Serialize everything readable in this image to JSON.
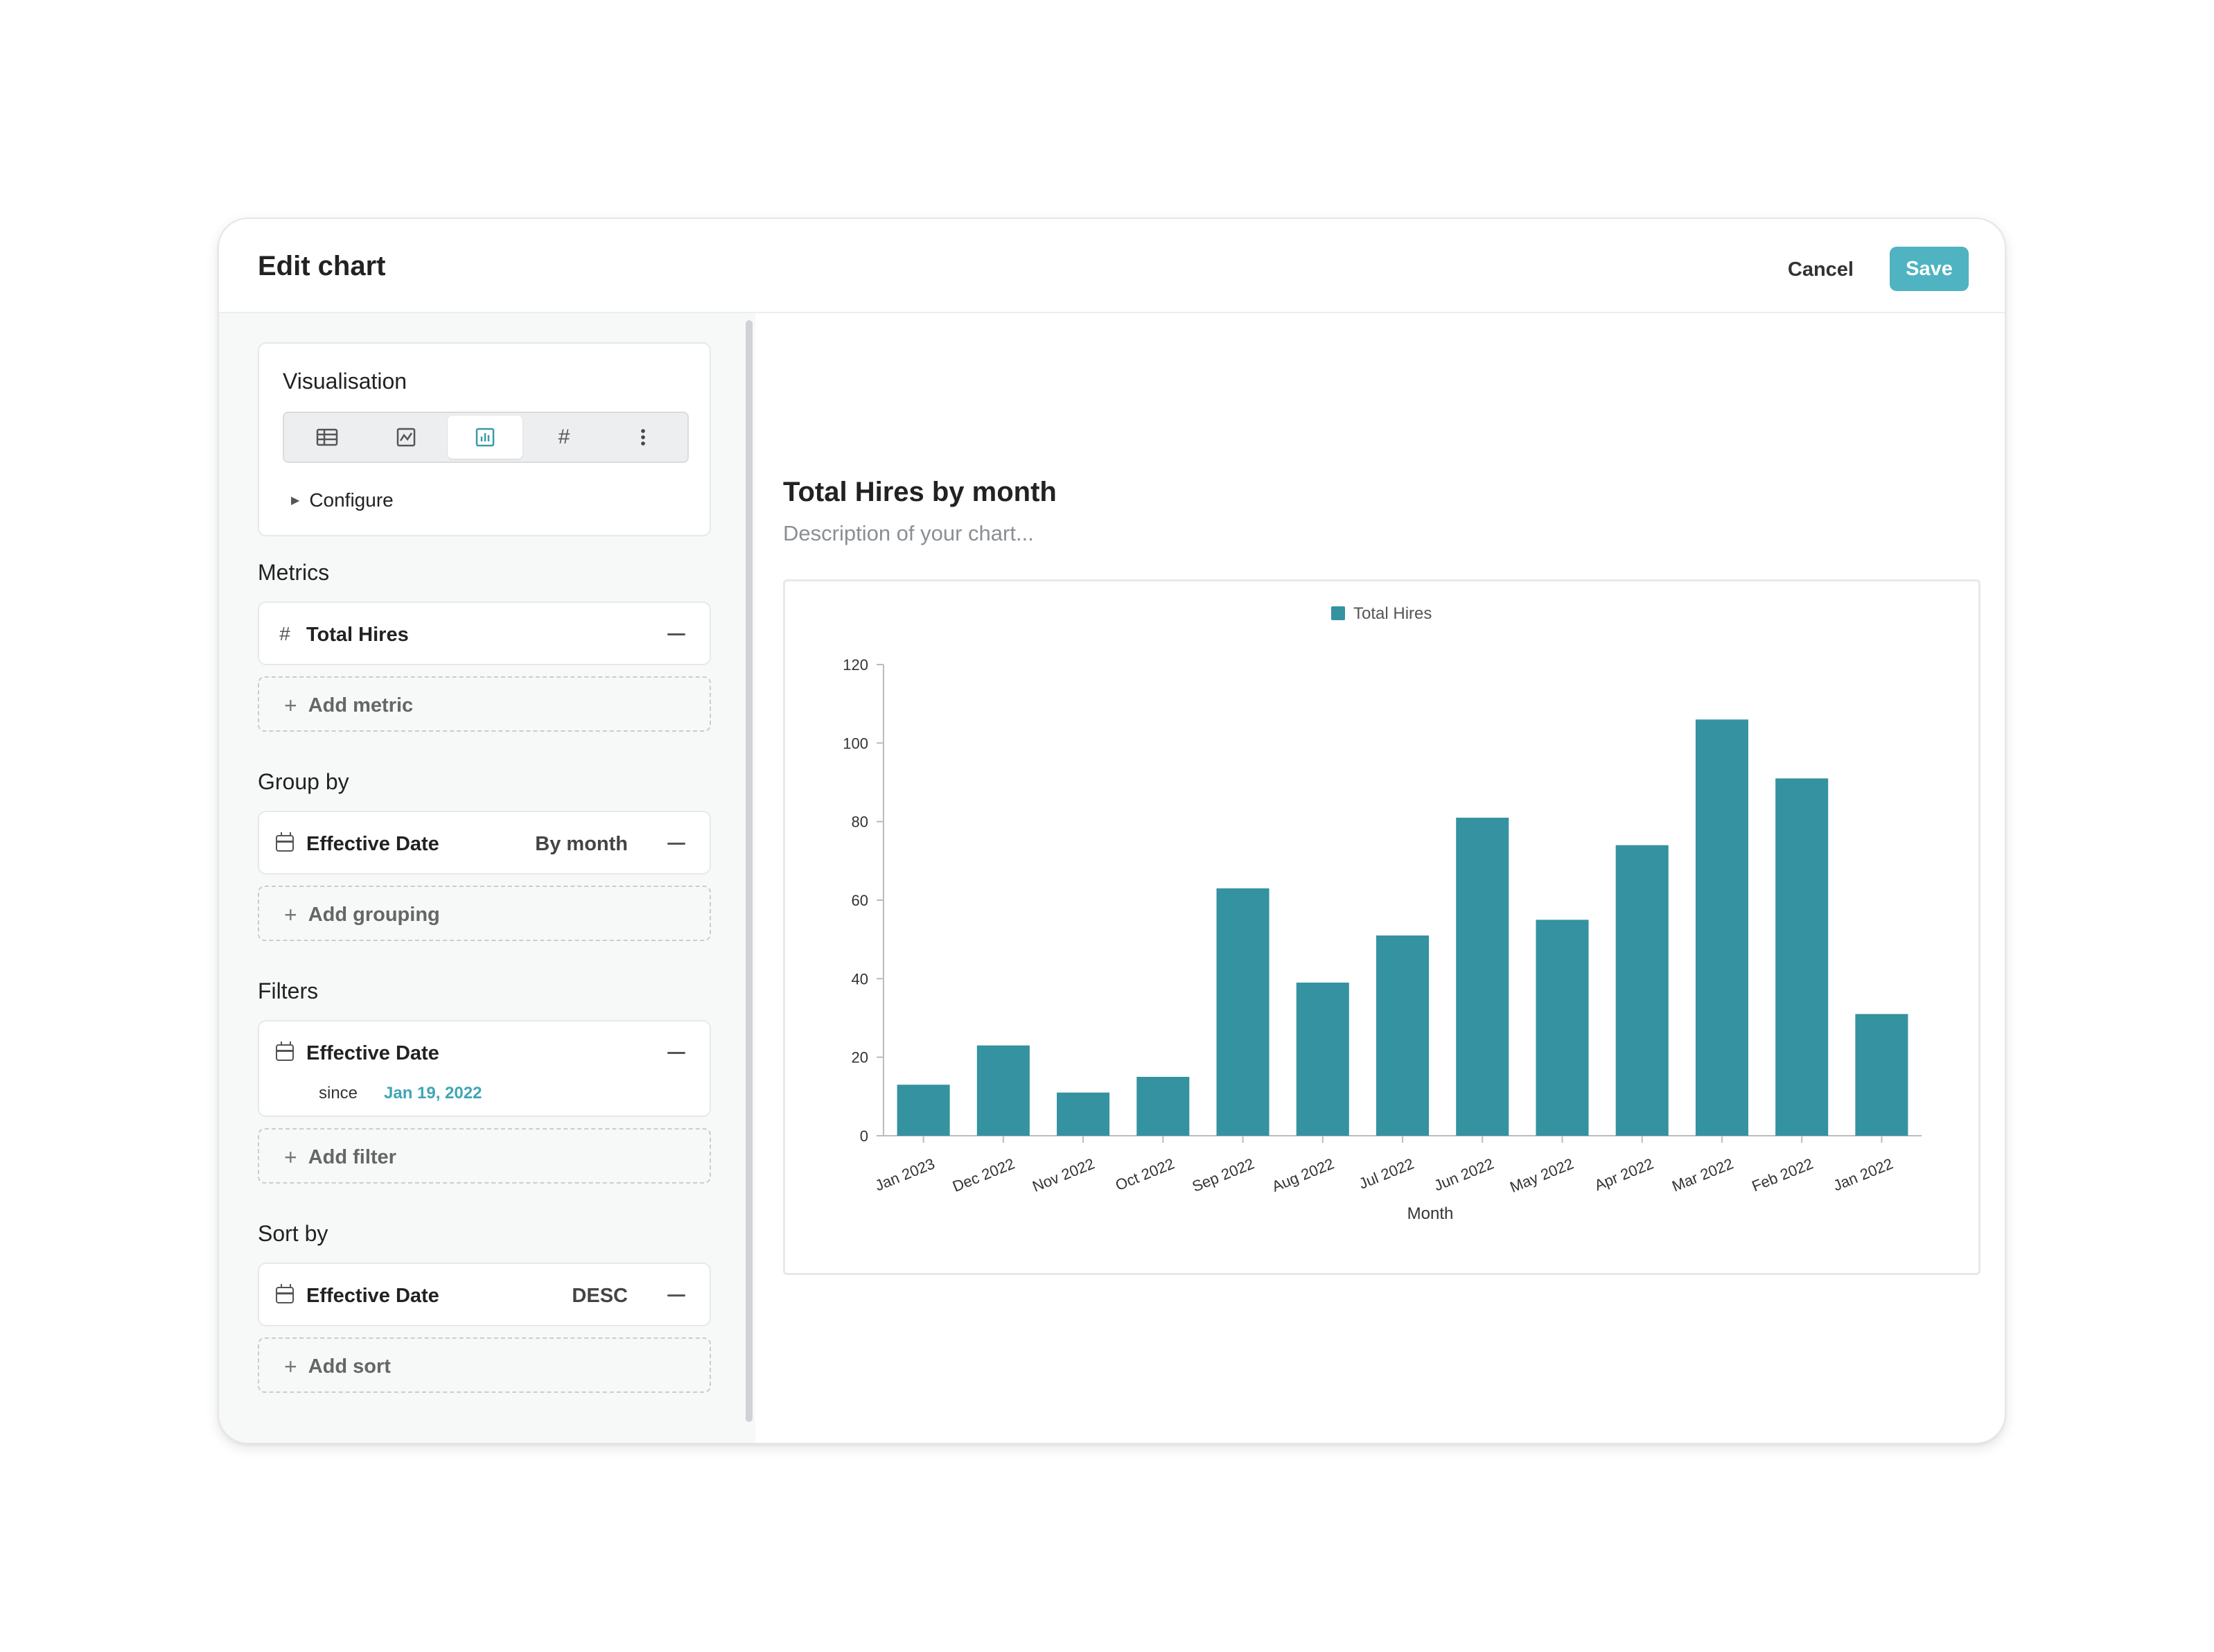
{
  "header": {
    "title": "Edit chart",
    "cancel_label": "Cancel",
    "save_label": "Save"
  },
  "visualisation": {
    "title": "Visualisation",
    "options": [
      {
        "icon": "table-icon"
      },
      {
        "icon": "line-chart-icon"
      },
      {
        "icon": "bar-chart-icon",
        "active": true
      },
      {
        "icon": "number-icon",
        "glyph": "#"
      },
      {
        "icon": "more-vertical-icon"
      }
    ],
    "configure_label": "Configure"
  },
  "metrics": {
    "title": "Metrics",
    "item": {
      "glyph": "#",
      "label": "Total Hires"
    },
    "add_label": "Add metric"
  },
  "group_by": {
    "title": "Group by",
    "item": {
      "label": "Effective Date",
      "meta": "By month"
    },
    "add_label": "Add grouping"
  },
  "filters": {
    "title": "Filters",
    "item": {
      "label": "Effective Date",
      "since_label": "since",
      "since_value": "Jan 19, 2022"
    },
    "add_label": "Add filter"
  },
  "sort_by": {
    "title": "Sort by",
    "item": {
      "label": "Effective Date",
      "meta": "DESC"
    },
    "add_label": "Add sort"
  },
  "chart": {
    "title": "Total Hires by month",
    "description_placeholder": "Description of your chart..."
  },
  "colors": {
    "accent": "#4fb3c2",
    "bar": "#3592a0",
    "link": "#3fa6b5"
  },
  "chart_data": {
    "type": "bar",
    "categories": [
      "Jan 2023",
      "Dec 2022",
      "Nov 2022",
      "Oct 2022",
      "Sep 2022",
      "Aug 2022",
      "Jul 2022",
      "Jun 2022",
      "May 2022",
      "Apr 2022",
      "Mar 2022",
      "Feb 2022",
      "Jan 2022"
    ],
    "series": [
      {
        "name": "Total Hires",
        "values": [
          13,
          23,
          11,
          15,
          63,
          39,
          51,
          81,
          55,
          74,
          106,
          91,
          31
        ]
      }
    ],
    "xlabel": "Month",
    "ylabel": "",
    "ylim": [
      0,
      120
    ],
    "yticks": [
      0,
      20,
      40,
      60,
      80,
      100,
      120
    ],
    "legend": "top-center",
    "grid": false
  }
}
